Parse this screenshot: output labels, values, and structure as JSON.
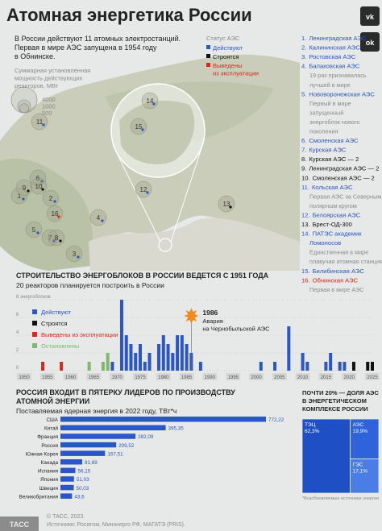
{
  "header": {
    "title": "Атомная энергетика России",
    "intro": [
      "В России действуют 11 атомных электростанций.",
      "Первая в мире АЭС запущена в 1954 году",
      "в Обнинске."
    ],
    "social": [
      "vk",
      "ok"
    ]
  },
  "map": {
    "capacity_legend": {
      "title": [
        "Суммарная установленная",
        "мощность действующих",
        "реакторов, МВт"
      ],
      "sizes": [
        4000,
        1000,
        500
      ]
    },
    "status_legend": {
      "title": "Статус АЭС",
      "items": [
        {
          "label": [
            "Действуют"
          ],
          "color": "#2a56c6"
        },
        {
          "label": [
            "Строятся"
          ],
          "color": "#111111"
        },
        {
          "label": [
            "Выведены",
            "из эксплуатации"
          ],
          "color": "#d62a1e"
        }
      ]
    }
  },
  "stations": [
    {
      "number": "1.",
      "map_label": "1",
      "name": [
        "Ленинградская АЭС"
      ],
      "color": "#2a56c6"
    },
    {
      "number": "2.",
      "map_label": "2",
      "name": [
        "Калининская АЭС"
      ],
      "color": "#2a56c6"
    },
    {
      "number": "3.",
      "map_label": "3",
      "name": [
        "Ростовская АЭС"
      ],
      "color": "#2a56c6"
    },
    {
      "number": "4.",
      "map_label": "4",
      "name": [
        "Балаковская АЭС"
      ],
      "color": "#2a56c6",
      "note": [
        "19 раз признавалась",
        "лучшей в мире"
      ]
    },
    {
      "number": "5.",
      "map_label": "5",
      "name": [
        "Нововоронежская АЭС"
      ],
      "color": "#2a56c6",
      "note": [
        "Первый в мире",
        "запущенный",
        "энергоблок нового",
        "поколения"
      ]
    },
    {
      "number": "6.",
      "map_label": "6",
      "name": [
        "Смоленская АЭС"
      ],
      "color": "#2a56c6"
    },
    {
      "number": "7.",
      "map_label": "7",
      "name": [
        "Курская АЭС"
      ],
      "color": "#2a56c6"
    },
    {
      "number": "8.",
      "map_label": "8",
      "name": [
        "Курская АЭС — 2"
      ],
      "color": "#111111"
    },
    {
      "number": "9.",
      "map_label": "9",
      "name": [
        "Ленинградская АЭС — 2"
      ],
      "color": "#111111"
    },
    {
      "number": "10.",
      "map_label": "10",
      "name": [
        "Смоленская АЭС — 2"
      ],
      "color": "#111111"
    },
    {
      "number": "11.",
      "map_label": "11",
      "name": [
        "Кольская АЭС"
      ],
      "color": "#2a56c6",
      "note": [
        "Первая АЭС за Северным",
        "полярным кругом"
      ]
    },
    {
      "number": "12.",
      "map_label": "12",
      "name": [
        "Белоярская АЭС"
      ],
      "color": "#2a56c6"
    },
    {
      "number": "13.",
      "map_label": "13",
      "name": [
        "Брест-ОД-300"
      ],
      "color": "#111111"
    },
    {
      "number": "14.",
      "map_label": "14",
      "name": [
        "ПАТЭС академик",
        "Ломоносов"
      ],
      "color": "#2a56c6",
      "note": [
        "Единственная в мире",
        "плавучая атомная станция"
      ]
    },
    {
      "number": "15.",
      "map_label": "15",
      "name": [
        "Билибинская АЭС"
      ],
      "color": "#2a56c6"
    },
    {
      "number": "16.",
      "map_label": "16",
      "name": [
        "Обнинская АЭС"
      ],
      "color": "#d62a1e",
      "note": [
        "Первая в мире АЭС"
      ]
    }
  ],
  "chart_data": [
    {
      "type": "bar",
      "title": "СТРОИТЕЛЬСТВО ЭНЕРГОБЛОКОВ В РОССИИ ВЕДЕТСЯ С 1951 ГОДА",
      "subtitle": "20 реакторов планируется построить в России",
      "x": [
        1954,
        1958,
        1964,
        1967,
        1968,
        1969,
        1971,
        1972,
        1973,
        1974,
        1975,
        1976,
        1977,
        1979,
        1980,
        1981,
        1982,
        1983,
        1984,
        1985,
        1986,
        1988,
        2001,
        2004,
        2007,
        2010,
        2011,
        2015,
        2016,
        2018,
        2019,
        2021,
        2024,
        2025
      ],
      "series": [
        {
          "name": "Действуют",
          "color": "#2a56c6",
          "values": [
            0,
            0,
            0,
            0,
            0,
            1,
            8,
            4,
            3,
            2,
            3,
            1,
            2,
            3,
            4,
            3,
            2,
            4,
            4,
            3,
            2,
            1,
            1,
            1,
            5,
            2,
            1,
            1,
            2,
            1,
            1,
            0,
            0,
            0
          ]
        },
        {
          "name": "Строятся",
          "color": "#111111",
          "values": [
            0,
            0,
            0,
            0,
            0,
            0,
            0,
            0,
            0,
            0,
            0,
            0,
            0,
            0,
            0,
            0,
            0,
            0,
            0,
            0,
            0,
            0,
            0,
            0,
            0,
            0,
            0,
            0,
            0,
            0,
            0,
            1,
            1,
            1
          ]
        },
        {
          "name": "Выведены из эксплуатации",
          "color": "#d62a1e",
          "values": [
            1,
            1,
            0,
            0,
            0,
            0,
            0,
            0,
            0,
            0,
            0,
            0,
            0,
            0,
            0,
            0,
            0,
            0,
            0,
            0,
            0,
            0,
            0,
            0,
            0,
            0,
            0,
            0,
            0,
            0,
            0,
            0,
            0,
            0
          ]
        },
        {
          "name": "Остановлены",
          "color": "#7fb86a",
          "values": [
            0,
            0,
            1,
            1,
            2,
            0,
            0,
            0,
            0,
            0,
            0,
            0,
            0,
            0,
            0,
            0,
            0,
            0,
            0,
            0,
            0,
            0,
            0,
            0,
            0,
            0,
            0,
            0,
            0,
            0,
            0,
            0,
            0,
            0
          ]
        }
      ],
      "xlim": [
        1950,
        2025
      ],
      "xticks": [
        1950,
        1955,
        1960,
        1965,
        1970,
        1975,
        1980,
        1985,
        1990,
        1995,
        2000,
        2005,
        2010,
        2015,
        2020,
        2025
      ],
      "ylim": [
        0,
        8
      ],
      "yticks": [
        0,
        2,
        4,
        6,
        {
          "value": 8,
          "label": "8 энергоблоков"
        }
      ],
      "grid": true,
      "annotation": {
        "year": 1986,
        "text": [
          "Авария",
          "на Чернобыльской АЭС"
        ]
      }
    },
    {
      "type": "hbar",
      "title": [
        "РОССИЯ ВХОДИТ В ПЯТЕРКУ ЛИДЕРОВ ПО ПРОИЗВОДСТВУ",
        "АТОМНОЙ ЭНЕРГИИ"
      ],
      "subtitle": "Поставляемая ядерная энергия в 2022 году, ТВт*ч",
      "categories": [
        "США",
        "Китай",
        "Франция",
        "Россия",
        "Южная Корея",
        "Канада",
        "Испания",
        "Япония",
        "Швеция",
        "Великобритания"
      ],
      "values": [
        772.22,
        395.35,
        282.09,
        209.52,
        167.51,
        81.69,
        56.15,
        51.03,
        50.03,
        43.6
      ],
      "value_labels": [
        "772,22",
        "395,35",
        "282,09",
        "209,52",
        "167,51",
        "81,69",
        "56,15",
        "51,03",
        "50,03",
        "43,6"
      ],
      "color": "#2a56c6"
    },
    {
      "type": "treemap",
      "title": [
        "ПОЧТИ 20% — ДОЛЯ АЭС",
        "В ЭНЕРГЕТИЧЕСКОМ",
        "КОМПЛЕКСЕ РОССИИ"
      ],
      "categories": [
        "ТЭЦ",
        "АЭС",
        "ГЭС"
      ],
      "values": [
        62.3,
        19.9,
        17.1
      ],
      "value_labels": [
        "62,3%",
        "19,9%",
        "17,1%"
      ],
      "colors": [
        "#1f4fc4",
        "#2f63dc",
        "#4a7de6"
      ],
      "footnote": "*Возобновляемые источники энергии"
    }
  ],
  "footer": {
    "logo": "ТАСС",
    "lines": [
      "© ТАСС, 2023.",
      "Источники: Росатом, Минэнерго РФ, МАГАТЭ (PRIS)."
    ]
  }
}
